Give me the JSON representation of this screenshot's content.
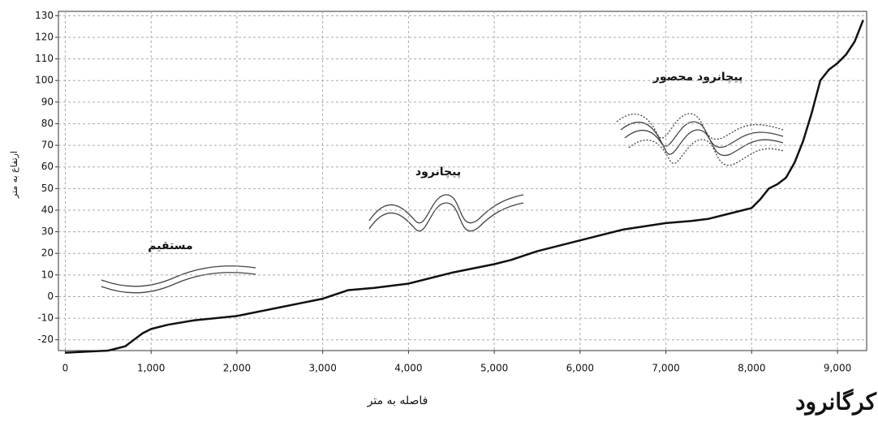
{
  "chart_data": {
    "type": "line",
    "x_label": "فاصله به متر",
    "y_label": "ارتفاع به متر",
    "caption": "کرگانرود",
    "annotations": [
      "مستقیم",
      "پیچانرود",
      "پیچانرود محصور"
    ],
    "x": [
      0,
      500,
      700,
      800,
      900,
      1000,
      1200,
      1500,
      2000,
      2500,
      3000,
      3300,
      3600,
      4000,
      4500,
      5000,
      5200,
      5500,
      6000,
      6500,
      7000,
      7300,
      7500,
      7800,
      8000,
      8100,
      8200,
      8300,
      8400,
      8500,
      8600,
      8700,
      8800,
      8900,
      9000,
      9100,
      9200,
      9300
    ],
    "series": [
      {
        "color": "#111111",
        "values": [
          -26,
          -25,
          -23,
          -20,
          -17,
          -15,
          -13,
          -11,
          -9,
          -5,
          -1,
          3,
          4,
          6,
          11,
          15,
          17,
          21,
          26,
          31,
          34,
          35,
          36,
          39,
          41,
          45,
          50,
          52,
          55,
          62,
          72,
          85,
          100,
          105,
          108,
          112,
          118,
          128
        ]
      }
    ],
    "xlim": [
      -80,
      9340
    ],
    "ylim": [
      -25,
      132
    ],
    "xticks": [
      0,
      {
        "value": 1000,
        "label": "1,000"
      },
      {
        "value": 2000,
        "label": "2,000"
      },
      {
        "value": 3000,
        "label": "3,000"
      },
      {
        "value": 4000,
        "label": "4,000"
      },
      {
        "value": 5000,
        "label": "5,000"
      },
      {
        "value": 6000,
        "label": "6,000"
      },
      {
        "value": 7000,
        "label": "7,000"
      },
      {
        "value": 8000,
        "label": "8,000"
      },
      {
        "value": 9000,
        "label": "9,000"
      }
    ],
    "yticks": [
      -20,
      -10,
      0,
      10,
      20,
      30,
      40,
      50,
      60,
      70,
      80,
      90,
      100,
      110,
      120,
      130
    ],
    "grid": true
  }
}
